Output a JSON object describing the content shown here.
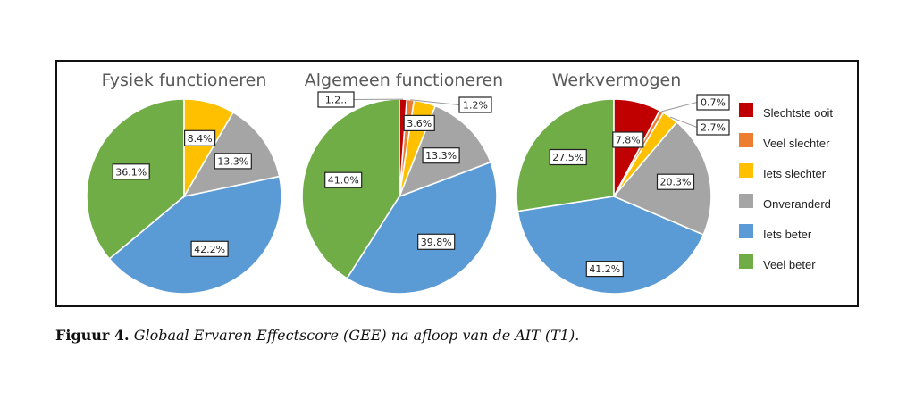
{
  "chart_data": [
    {
      "type": "pie",
      "title": "Fysiek functioneren",
      "categories": [
        "Slechtste ooit",
        "Veel slechter",
        "Iets slechter",
        "Onveranderd",
        "Iets beter",
        "Veel beter"
      ],
      "values": [
        0,
        0,
        8.4,
        13.3,
        42.2,
        36.1
      ],
      "labels": [
        "",
        "",
        "8.4%",
        "13.3%",
        "42.2%",
        "36.1%"
      ]
    },
    {
      "type": "pie",
      "title": "Algemeen functioneren",
      "categories": [
        "Slechtste ooit",
        "Veel slechter",
        "Iets slechter",
        "Onveranderd",
        "Iets beter",
        "Veel beter"
      ],
      "values": [
        1.2,
        1.2,
        3.6,
        13.3,
        39.8,
        41.0
      ],
      "labels": [
        "1.2..",
        "1.2%",
        "3.6%",
        "13.3%",
        "39.8%",
        "41.0%"
      ]
    },
    {
      "type": "pie",
      "title": "Werkvermogen",
      "categories": [
        "Slechtste ooit",
        "Veel slechter",
        "Iets slechter",
        "Onveranderd",
        "Iets beter",
        "Veel beter"
      ],
      "values": [
        7.8,
        0.7,
        2.7,
        20.3,
        41.2,
        27.5
      ],
      "labels": [
        "7.8%",
        "0.7%",
        "2.7%",
        "20.3%",
        "41.2%",
        "27.5%"
      ]
    }
  ],
  "legend": {
    "position": "right",
    "items": [
      {
        "label": "Slechtste ooit",
        "color": "#C00000"
      },
      {
        "label": "Veel slechter",
        "color": "#ED7D31"
      },
      {
        "label": "Iets slechter",
        "color": "#FFC000"
      },
      {
        "label": "Onveranderd",
        "color": "#A5A5A5"
      },
      {
        "label": "Iets beter",
        "color": "#5B9BD5"
      },
      {
        "label": "Veel beter",
        "color": "#70AD47"
      }
    ]
  },
  "caption": {
    "label": "Figuur 4.",
    "text": "Globaal Ervaren Effectscore (GEE) na afloop van de AIT (T1)."
  }
}
